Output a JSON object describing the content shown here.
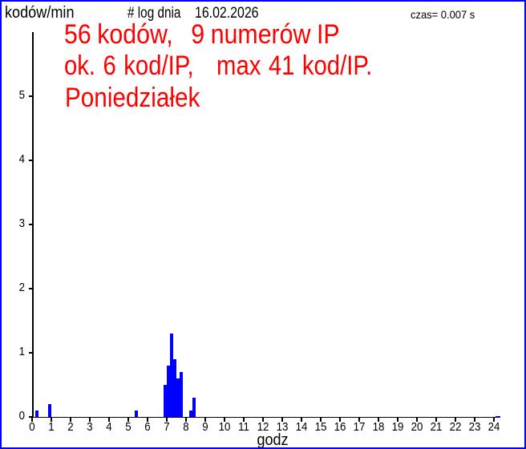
{
  "window": {
    "background": "#ffffff",
    "frame_color": "#0000ff"
  },
  "header": {
    "unit_label": "kodów/min",
    "log_label": "# log dnia",
    "date": "16.02.2026",
    "time_info": "czas= 0.007 s"
  },
  "annotation": {
    "color": "#ff0000",
    "lines": [
      "56 kodów,   9 numerów IP",
      "ok. 6 kod/IP,   max 41 kod/IP.",
      "Poniedziałek"
    ]
  },
  "chart_data": {
    "type": "bar",
    "xlabel": "godz",
    "ylabel": "kodów/min",
    "bar_color": "#0000ff",
    "axis_color": "#000000",
    "x_ticks": [
      0,
      1,
      2,
      3,
      4,
      5,
      6,
      7,
      8,
      9,
      10,
      11,
      12,
      13,
      14,
      15,
      16,
      17,
      18,
      19,
      20,
      21,
      22,
      23,
      24
    ],
    "y_ticks": [
      0,
      1,
      2,
      3,
      4,
      5
    ],
    "xlim_hours": [
      0,
      24
    ],
    "ylim": [
      0,
      6
    ],
    "bin_width_minutes": 10,
    "bars": [
      {
        "start_minute": 10,
        "codes_per_min": 0.1
      },
      {
        "start_minute": 50,
        "codes_per_min": 0.2
      },
      {
        "start_minute": 320,
        "codes_per_min": 0.1
      },
      {
        "start_minute": 410,
        "codes_per_min": 0.5
      },
      {
        "start_minute": 420,
        "codes_per_min": 0.8
      },
      {
        "start_minute": 430,
        "codes_per_min": 1.3
      },
      {
        "start_minute": 440,
        "codes_per_min": 0.9
      },
      {
        "start_minute": 450,
        "codes_per_min": 0.6
      },
      {
        "start_minute": 460,
        "codes_per_min": 0.7
      },
      {
        "start_minute": 490,
        "codes_per_min": 0.1
      },
      {
        "start_minute": 500,
        "codes_per_min": 0.3
      }
    ]
  }
}
